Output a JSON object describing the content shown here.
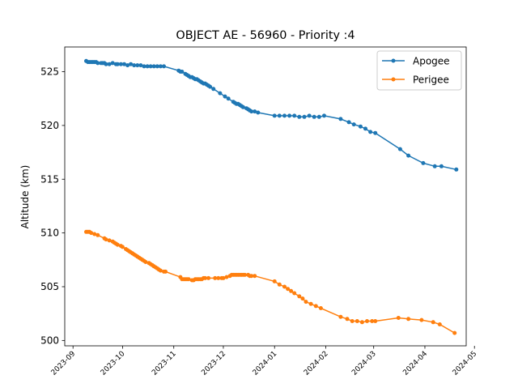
{
  "chart_data": {
    "type": "line",
    "title": "OBJECT AE - 56960 - Priority :4",
    "xlabel": "",
    "ylabel": "Altitude (km)",
    "xlim": [
      "2023-08-27",
      "2024-04-26"
    ],
    "ylim": [
      499.5,
      527.3
    ],
    "x_ticks": [
      "2023-09",
      "2023-10",
      "2023-11",
      "2023-12",
      "2024-01",
      "2024-02",
      "2024-03",
      "2024-04",
      "2024-05"
    ],
    "y_ticks": [
      500,
      505,
      510,
      515,
      520,
      525
    ],
    "grid": false,
    "legend_position": "top-right",
    "series": [
      {
        "name": "Apogee",
        "color": "#1f77b4",
        "points": [
          [
            "2023-09-09",
            526.0
          ],
          [
            "2023-09-10",
            525.9
          ],
          [
            "2023-09-11",
            525.9
          ],
          [
            "2023-09-12",
            525.9
          ],
          [
            "2023-09-13",
            525.9
          ],
          [
            "2023-09-14",
            525.9
          ],
          [
            "2023-09-15",
            525.9
          ],
          [
            "2023-09-16",
            525.8
          ],
          [
            "2023-09-18",
            525.8
          ],
          [
            "2023-09-19",
            525.8
          ],
          [
            "2023-09-20",
            525.8
          ],
          [
            "2023-09-21",
            525.7
          ],
          [
            "2023-09-23",
            525.7
          ],
          [
            "2023-09-25",
            525.8
          ],
          [
            "2023-09-27",
            525.7
          ],
          [
            "2023-09-28",
            525.7
          ],
          [
            "2023-09-30",
            525.7
          ],
          [
            "2023-10-02",
            525.7
          ],
          [
            "2023-10-04",
            525.6
          ],
          [
            "2023-10-06",
            525.7
          ],
          [
            "2023-10-08",
            525.6
          ],
          [
            "2023-10-10",
            525.6
          ],
          [
            "2023-10-12",
            525.6
          ],
          [
            "2023-10-14",
            525.5
          ],
          [
            "2023-10-16",
            525.5
          ],
          [
            "2023-10-18",
            525.5
          ],
          [
            "2023-10-20",
            525.5
          ],
          [
            "2023-10-22",
            525.5
          ],
          [
            "2023-10-24",
            525.5
          ],
          [
            "2023-10-26",
            525.5
          ],
          [
            "2023-11-04",
            525.1
          ],
          [
            "2023-11-05",
            525.0
          ],
          [
            "2023-11-06",
            525.0
          ],
          [
            "2023-11-08",
            524.8
          ],
          [
            "2023-11-09",
            524.7
          ],
          [
            "2023-11-10",
            524.6
          ],
          [
            "2023-11-11",
            524.5
          ],
          [
            "2023-11-12",
            524.5
          ],
          [
            "2023-11-13",
            524.4
          ],
          [
            "2023-11-14",
            524.3
          ],
          [
            "2023-11-15",
            524.3
          ],
          [
            "2023-11-16",
            524.2
          ],
          [
            "2023-11-17",
            524.1
          ],
          [
            "2023-11-18",
            524.0
          ],
          [
            "2023-11-19",
            523.9
          ],
          [
            "2023-11-20",
            523.9
          ],
          [
            "2023-11-21",
            523.8
          ],
          [
            "2023-11-22",
            523.7
          ],
          [
            "2023-11-23",
            523.6
          ],
          [
            "2023-11-25",
            523.4
          ],
          [
            "2023-11-29",
            523.0
          ],
          [
            "2023-12-02",
            522.7
          ],
          [
            "2023-12-04",
            522.5
          ],
          [
            "2023-12-07",
            522.2
          ],
          [
            "2023-12-08",
            522.1
          ],
          [
            "2023-12-09",
            522.0
          ],
          [
            "2023-12-10",
            522.0
          ],
          [
            "2023-12-11",
            521.9
          ],
          [
            "2023-12-12",
            521.8
          ],
          [
            "2023-12-13",
            521.7
          ],
          [
            "2023-12-15",
            521.6
          ],
          [
            "2023-12-16",
            521.5
          ],
          [
            "2023-12-17",
            521.4
          ],
          [
            "2023-12-18",
            521.3
          ],
          [
            "2023-12-20",
            521.3
          ],
          [
            "2023-12-22",
            521.2
          ],
          [
            "2024-01-01",
            520.9
          ],
          [
            "2024-01-04",
            520.9
          ],
          [
            "2024-01-07",
            520.9
          ],
          [
            "2024-01-10",
            520.9
          ],
          [
            "2024-01-13",
            520.9
          ],
          [
            "2024-01-16",
            520.8
          ],
          [
            "2024-01-19",
            520.8
          ],
          [
            "2024-01-22",
            520.9
          ],
          [
            "2024-01-25",
            520.8
          ],
          [
            "2024-01-28",
            520.8
          ],
          [
            "2024-01-31",
            520.9
          ],
          [
            "2024-02-10",
            520.6
          ],
          [
            "2024-02-15",
            520.3
          ],
          [
            "2024-02-18",
            520.1
          ],
          [
            "2024-02-22",
            519.9
          ],
          [
            "2024-02-25",
            519.7
          ],
          [
            "2024-02-28",
            519.4
          ],
          [
            "2024-03-02",
            519.3
          ],
          [
            "2024-03-17",
            517.8
          ],
          [
            "2024-03-22",
            517.2
          ],
          [
            "2024-03-31",
            516.5
          ],
          [
            "2024-04-07",
            516.2
          ],
          [
            "2024-04-11",
            516.2
          ],
          [
            "2024-04-20",
            515.9
          ]
        ]
      },
      {
        "name": "Perigee",
        "color": "#ff7f0e",
        "points": [
          [
            "2023-09-09",
            510.1
          ],
          [
            "2023-09-10",
            510.1
          ],
          [
            "2023-09-11",
            510.1
          ],
          [
            "2023-09-12",
            510.0
          ],
          [
            "2023-09-14",
            509.9
          ],
          [
            "2023-09-16",
            509.8
          ],
          [
            "2023-09-20",
            509.5
          ],
          [
            "2023-09-21",
            509.4
          ],
          [
            "2023-09-23",
            509.3
          ],
          [
            "2023-09-25",
            509.2
          ],
          [
            "2023-09-26",
            509.1
          ],
          [
            "2023-09-27",
            509.0
          ],
          [
            "2023-09-28",
            508.9
          ],
          [
            "2023-09-30",
            508.8
          ],
          [
            "2023-10-01",
            508.7
          ],
          [
            "2023-10-03",
            508.5
          ],
          [
            "2023-10-04",
            508.4
          ],
          [
            "2023-10-05",
            508.3
          ],
          [
            "2023-10-06",
            508.2
          ],
          [
            "2023-10-07",
            508.1
          ],
          [
            "2023-10-08",
            508.0
          ],
          [
            "2023-10-09",
            507.9
          ],
          [
            "2023-10-10",
            507.8
          ],
          [
            "2023-10-11",
            507.7
          ],
          [
            "2023-10-12",
            507.6
          ],
          [
            "2023-10-13",
            507.5
          ],
          [
            "2023-10-14",
            507.4
          ],
          [
            "2023-10-15",
            507.3
          ],
          [
            "2023-10-17",
            507.2
          ],
          [
            "2023-10-18",
            507.1
          ],
          [
            "2023-10-19",
            507.0
          ],
          [
            "2023-10-20",
            506.9
          ],
          [
            "2023-10-21",
            506.8
          ],
          [
            "2023-10-22",
            506.7
          ],
          [
            "2023-10-23",
            506.6
          ],
          [
            "2023-10-24",
            506.5
          ],
          [
            "2023-10-26",
            506.4
          ],
          [
            "2023-10-27",
            506.4
          ],
          [
            "2023-11-05",
            505.9
          ],
          [
            "2023-11-06",
            505.7
          ],
          [
            "2023-11-07",
            505.7
          ],
          [
            "2023-11-08",
            505.7
          ],
          [
            "2023-11-09",
            505.7
          ],
          [
            "2023-11-10",
            505.7
          ],
          [
            "2023-11-12",
            505.6
          ],
          [
            "2023-11-13",
            505.6
          ],
          [
            "2023-11-14",
            505.7
          ],
          [
            "2023-11-15",
            505.7
          ],
          [
            "2023-11-16",
            505.7
          ],
          [
            "2023-11-17",
            505.7
          ],
          [
            "2023-11-18",
            505.7
          ],
          [
            "2023-11-19",
            505.8
          ],
          [
            "2023-11-20",
            505.8
          ],
          [
            "2023-11-22",
            505.8
          ],
          [
            "2023-11-26",
            505.8
          ],
          [
            "2023-11-28",
            505.8
          ],
          [
            "2023-11-30",
            505.8
          ],
          [
            "2023-12-01",
            505.8
          ],
          [
            "2023-12-03",
            505.9
          ],
          [
            "2023-12-05",
            506.0
          ],
          [
            "2023-12-06",
            506.1
          ],
          [
            "2023-12-07",
            506.1
          ],
          [
            "2023-12-08",
            506.1
          ],
          [
            "2023-12-09",
            506.1
          ],
          [
            "2023-12-10",
            506.1
          ],
          [
            "2023-12-11",
            506.1
          ],
          [
            "2023-12-12",
            506.1
          ],
          [
            "2023-12-13",
            506.1
          ],
          [
            "2023-12-14",
            506.1
          ],
          [
            "2023-12-16",
            506.1
          ],
          [
            "2023-12-17",
            506.0
          ],
          [
            "2023-12-18",
            506.0
          ],
          [
            "2023-12-20",
            506.0
          ],
          [
            "2024-01-01",
            505.5
          ],
          [
            "2024-01-04",
            505.2
          ],
          [
            "2024-01-07",
            505.0
          ],
          [
            "2024-01-09",
            504.8
          ],
          [
            "2024-01-11",
            504.6
          ],
          [
            "2024-01-13",
            504.4
          ],
          [
            "2024-01-16",
            504.1
          ],
          [
            "2024-01-18",
            503.9
          ],
          [
            "2024-01-20",
            503.6
          ],
          [
            "2024-01-23",
            503.4
          ],
          [
            "2024-01-26",
            503.2
          ],
          [
            "2024-01-29",
            503.0
          ],
          [
            "2024-02-10",
            502.2
          ],
          [
            "2024-02-14",
            502.0
          ],
          [
            "2024-02-17",
            501.8
          ],
          [
            "2024-02-20",
            501.8
          ],
          [
            "2024-02-23",
            501.7
          ],
          [
            "2024-02-26",
            501.8
          ],
          [
            "2024-02-29",
            501.8
          ],
          [
            "2024-03-02",
            501.8
          ],
          [
            "2024-03-16",
            502.1
          ],
          [
            "2024-03-22",
            502.0
          ],
          [
            "2024-03-30",
            501.9
          ],
          [
            "2024-04-06",
            501.7
          ],
          [
            "2024-04-10",
            501.5
          ],
          [
            "2024-04-19",
            500.7
          ]
        ]
      }
    ]
  }
}
